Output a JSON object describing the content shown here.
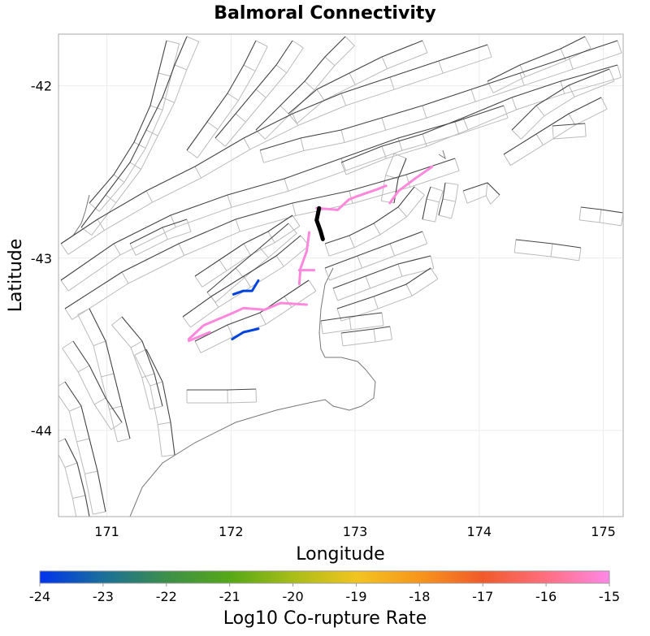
{
  "chart_data": {
    "type": "map",
    "title": "Balmoral Connectivity",
    "xlabel": "Longitude",
    "ylabel": "Latitude",
    "xlim": [
      170.61,
      175.16
    ],
    "ylim": [
      -44.5,
      -41.7
    ],
    "xticks": [
      "171",
      "172",
      "173",
      "174",
      "175"
    ],
    "xtick_values": [
      171,
      172,
      173,
      174,
      175
    ],
    "yticks": [
      "-42",
      "-43",
      "-44"
    ],
    "ytick_values": [
      -42,
      -43,
      -44
    ],
    "grid": true,
    "colorbar": {
      "label": "Log10 Co-rupture Rate",
      "range": [
        -24,
        -15
      ],
      "ticks": [
        "-24",
        "-23",
        "-22",
        "-21",
        "-20",
        "-19",
        "-18",
        "-17",
        "-16",
        "-15"
      ],
      "tick_values": [
        -24,
        -23,
        -22,
        -21,
        -20,
        -19,
        -18,
        -17,
        -16,
        -15
      ],
      "colors": [
        "#0033ee",
        "#1a6f9a",
        "#3d8f4a",
        "#55a817",
        "#a8bd18",
        "#f2c420",
        "#f7961c",
        "#f05a2a",
        "#ff6e80",
        "#ff88e8"
      ]
    },
    "target_section": {
      "name": "Balmoral",
      "color": "#000000",
      "trace": [
        [
          172.71,
          -42.71
        ],
        [
          172.69,
          -42.78
        ],
        [
          172.72,
          -42.84
        ],
        [
          172.74,
          -42.89
        ]
      ]
    },
    "corupture_sections": [
      {
        "value": -15.2,
        "color": "#ff88dd",
        "trace": [
          [
            171.66,
            -43.47
          ],
          [
            171.78,
            -43.39
          ],
          [
            172.01,
            -43.32
          ],
          [
            172.1,
            -43.29
          ],
          [
            172.27,
            -43.3
          ],
          [
            172.4,
            -43.26
          ],
          [
            172.61,
            -43.27
          ]
        ]
      },
      {
        "value": -15.2,
        "color": "#ff88dd",
        "trace": [
          [
            171.66,
            -43.48
          ],
          [
            171.83,
            -43.43
          ]
        ]
      },
      {
        "value": -15.3,
        "color": "#ff88dd",
        "trace": [
          [
            172.63,
            -42.85
          ],
          [
            172.61,
            -42.96
          ],
          [
            172.56,
            -43.06
          ],
          [
            172.55,
            -43.15
          ]
        ]
      },
      {
        "value": -15.3,
        "color": "#ff88dd",
        "trace": [
          [
            172.55,
            -43.07
          ],
          [
            172.67,
            -43.07
          ]
        ]
      },
      {
        "value": -15.1,
        "color": "#ff88dd",
        "trace": [
          [
            172.69,
            -42.71
          ],
          [
            172.86,
            -42.72
          ],
          [
            172.95,
            -42.66
          ],
          [
            173.02,
            -42.64
          ],
          [
            173.18,
            -42.6
          ],
          [
            173.25,
            -42.58
          ]
        ]
      },
      {
        "value": -15.1,
        "color": "#ff88dd",
        "trace": [
          [
            173.28,
            -42.68
          ],
          [
            173.35,
            -42.61
          ],
          [
            173.48,
            -42.54
          ],
          [
            173.62,
            -42.47
          ]
        ]
      },
      {
        "value": -24,
        "color": "#0044dd",
        "trace": [
          [
            172.02,
            -43.21
          ],
          [
            172.1,
            -43.19
          ],
          [
            172.17,
            -43.19
          ],
          [
            172.22,
            -43.13
          ]
        ]
      },
      {
        "value": -24,
        "color": "#0044dd",
        "trace": [
          [
            172.01,
            -43.47
          ],
          [
            172.1,
            -43.43
          ],
          [
            172.22,
            -43.41
          ]
        ]
      }
    ]
  }
}
